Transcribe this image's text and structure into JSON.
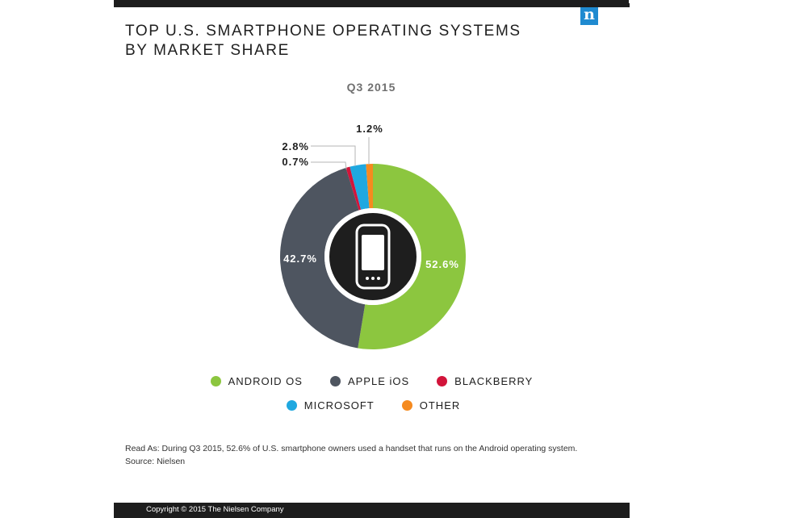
{
  "header": {
    "title_line1": "TOP U.S. SMARTPHONE OPERATING SYSTEMS",
    "title_line2": "BY MARKET SHARE",
    "subtitle": "Q3 2015",
    "logo_text": "n"
  },
  "chart_data": {
    "type": "pie",
    "title": "TOP U.S. SMARTPHONE OPERATING SYSTEMS BY MARKET SHARE",
    "subtitle": "Q3 2015",
    "variant": "donut",
    "start": "top",
    "direction": "clockwise",
    "center_icon": "smartphone-icon",
    "slices": [
      {
        "name": "ANDROID OS",
        "value": 52.6,
        "label": "52.6%",
        "color": "#8cc63f"
      },
      {
        "name": "APPLE iOS",
        "value": 42.7,
        "label": "42.7%",
        "color": "#4e5560"
      },
      {
        "name": "BLACKBERRY",
        "value": 0.7,
        "label": "0.7%",
        "color": "#d2143a"
      },
      {
        "name": "MICROSOFT",
        "value": 2.8,
        "label": "2.8%",
        "color": "#1fa8e0"
      },
      {
        "name": "OTHER",
        "value": 1.2,
        "label": "1.2%",
        "color": "#f58a1f"
      }
    ]
  },
  "legend": {
    "row1": [
      {
        "label": "ANDROID OS",
        "color": "#8cc63f"
      },
      {
        "label": "APPLE iOS",
        "color": "#4e5560"
      },
      {
        "label": "BLACKBERRY",
        "color": "#d2143a"
      }
    ],
    "row2": [
      {
        "label": "MICROSOFT",
        "color": "#1fa8e0"
      },
      {
        "label": "OTHER",
        "color": "#f58a1f"
      }
    ]
  },
  "note": {
    "read_as": "Read As: During Q3 2015, 52.6% of U.S. smartphone owners used a handset that runs on the Android operating system.",
    "source": "Source: Nielsen"
  },
  "footer": {
    "copyright": "Copyright © 2015 The Nielsen Company"
  }
}
